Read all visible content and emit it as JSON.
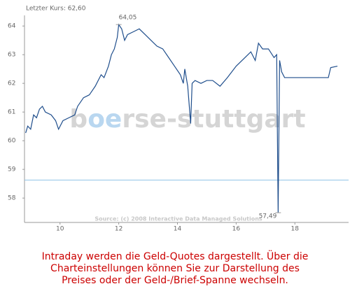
{
  "chart_data": {
    "type": "line",
    "title": "Letzter Kurs: 62,60",
    "source": "Source: (c) 2008 Interactive Data Managed Solutions",
    "watermark": [
      "b",
      "oe",
      "rse-stuttgart"
    ],
    "caption": [
      "Intraday werden die Geld-Quotes dargestellt. Über die",
      "Charteinstellungen können Sie zur Darstellung des",
      "Preises oder der Geld-/Brief-Spanne wechseln."
    ],
    "color": "#1f4e8c",
    "x": [
      8.83,
      8.9,
      9.0,
      9.1,
      9.2,
      9.3,
      9.4,
      9.5,
      9.7,
      9.85,
      9.95,
      10.1,
      10.3,
      10.5,
      10.6,
      10.8,
      11.0,
      11.2,
      11.4,
      11.5,
      11.65,
      11.75,
      11.85,
      11.95,
      12.0,
      12.1,
      12.2,
      12.3,
      12.5,
      12.7,
      12.9,
      13.1,
      13.3,
      13.5,
      13.7,
      13.9,
      14.1,
      14.2,
      14.25,
      14.35,
      14.45,
      14.5,
      14.6,
      14.8,
      15.0,
      15.2,
      15.45,
      15.7,
      16.0,
      16.3,
      16.5,
      16.65,
      16.76,
      16.9,
      17.1,
      17.29,
      17.38,
      17.43,
      17.48,
      17.55,
      17.65,
      19.14,
      19.22,
      19.45
    ],
    "values": [
      60.27,
      60.51,
      60.4,
      60.9,
      60.8,
      61.1,
      61.2,
      61.0,
      60.9,
      60.7,
      60.4,
      60.7,
      60.8,
      60.9,
      61.2,
      61.5,
      61.6,
      61.9,
      62.3,
      62.2,
      62.6,
      63.0,
      63.2,
      63.6,
      64.05,
      63.9,
      63.5,
      63.7,
      63.8,
      63.9,
      63.7,
      63.5,
      63.3,
      63.2,
      62.9,
      62.6,
      62.3,
      62.0,
      62.5,
      61.9,
      60.6,
      62.0,
      62.1,
      62.0,
      62.1,
      62.1,
      61.9,
      62.2,
      62.6,
      62.9,
      63.1,
      62.8,
      63.4,
      63.2,
      63.2,
      62.9,
      63.0,
      57.49,
      62.8,
      62.4,
      62.2,
      62.2,
      62.55,
      62.6
    ],
    "annotations": [
      {
        "label": "64,05",
        "x": 12.0,
        "y": 64.05
      },
      {
        "label": "57,49",
        "x": 17.43,
        "y": 57.49
      }
    ],
    "hline": {
      "value": 58.63,
      "color": "#8ec3e6"
    },
    "xlim": [
      8.79,
      19.83
    ],
    "ylim": [
      57.15,
      64.37
    ],
    "xticks": [
      10,
      12,
      14,
      16,
      18
    ],
    "yticks": [
      58,
      59,
      60,
      61,
      62,
      63,
      64
    ]
  }
}
